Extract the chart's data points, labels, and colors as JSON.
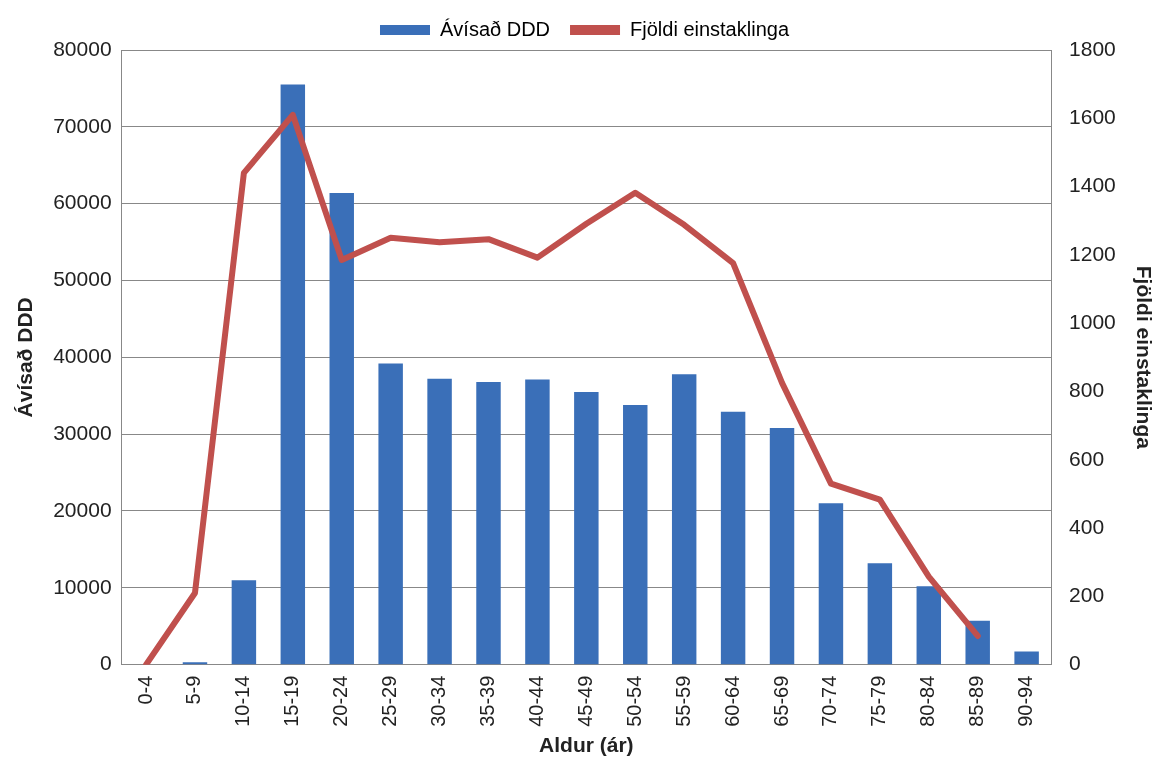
{
  "chart_data": {
    "type": "bar",
    "xlabel": "Aldur (ár)",
    "ylabel": "Ávísað DDD",
    "y2label": "Fjöldi einstaklinga",
    "categories": [
      "0-4",
      "5-9",
      "10-14",
      "15-19",
      "20-24",
      "25-29",
      "30-34",
      "35-39",
      "40-44",
      "45-49",
      "50-54",
      "55-59",
      "60-64",
      "65-69",
      "70-74",
      "75-79",
      "80-84",
      "85-89",
      "90-94"
    ],
    "series": [
      {
        "name": "Ávísað DDD",
        "color": "#3a6fb8",
        "values": [
          0,
          300,
          11000,
          75500,
          61400,
          39200,
          37200,
          36800,
          37100,
          35500,
          33800,
          37800,
          32900,
          30800,
          21000,
          13200,
          10200,
          5700,
          1700
        ]
      },
      {
        "name": "Fjöldi einstaklinga",
        "type": "line",
        "axis": "y2",
        "color": "#c0504d",
        "marker": "none",
        "line_style": "solid",
        "values": [
          0,
          210,
          1440,
          1610,
          1185,
          1250,
          1237,
          1246,
          1192,
          1291,
          1382,
          1288,
          1176,
          825,
          530,
          483,
          258,
          84,
          null
        ]
      }
    ],
    "ylim": [
      0,
      80000
    ],
    "yticks": [
      0,
      10000,
      20000,
      30000,
      40000,
      50000,
      60000,
      70000,
      80000
    ],
    "y2lim": [
      0,
      1800
    ],
    "y2ticks": [
      0,
      200,
      400,
      600,
      800,
      1000,
      1200,
      1400,
      1600,
      1800
    ],
    "grid": "y",
    "legend": "top"
  }
}
